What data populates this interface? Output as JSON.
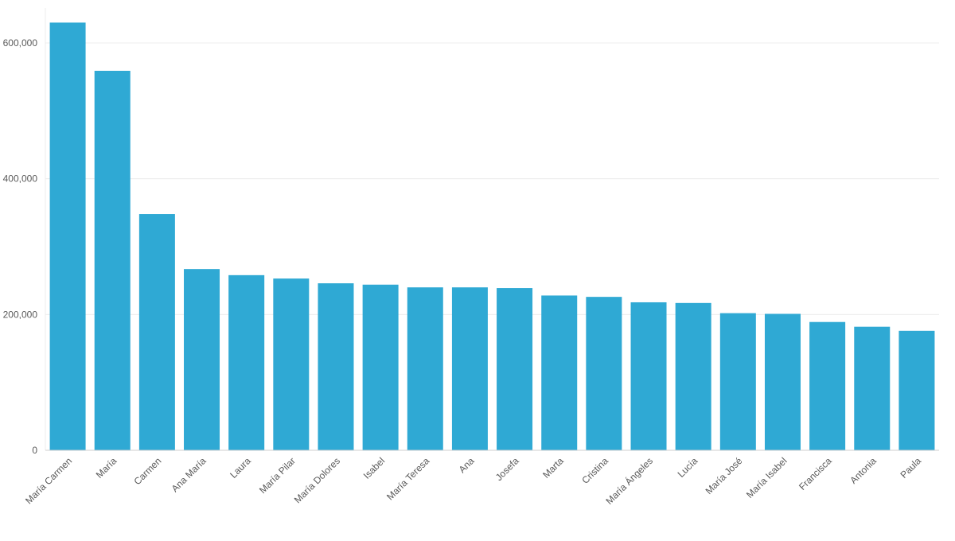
{
  "chart_data": {
    "type": "bar",
    "categories": [
      "María Carmen",
      "María",
      "Carmen",
      "Ana María",
      "Laura",
      "María Pilar",
      "María Dolores",
      "Isabel",
      "María Teresa",
      "Ana",
      "Josefa",
      "Marta",
      "Cristina",
      "María Ángeles",
      "Lucía",
      "María José",
      "María Isabel",
      "Francisca",
      "Antonia",
      "Paula"
    ],
    "values": [
      630000,
      559000,
      348000,
      267000,
      258000,
      253000,
      246000,
      244000,
      240000,
      240000,
      239000,
      228000,
      226000,
      218000,
      217000,
      202000,
      201000,
      189000,
      182000,
      176000
    ],
    "yticks": [
      0,
      200000,
      400000,
      600000
    ],
    "ytick_labels": [
      "0",
      "200,000",
      "400,000",
      "600,000"
    ],
    "ylim": [
      0,
      650000
    ],
    "grid": true,
    "colors": {
      "bar": "#2fa9d4",
      "grid": "#ececec",
      "axis": "#cfcfcf",
      "tick_text": "#5a5a5a"
    }
  }
}
